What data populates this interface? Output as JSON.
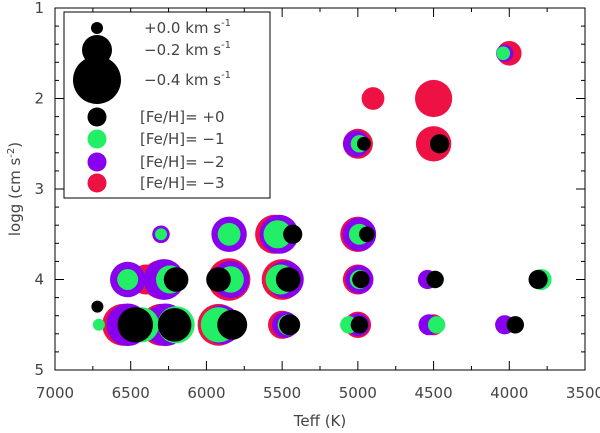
{
  "chart_data": {
    "type": "scatter",
    "xlabel": "Teff (K)",
    "ylabel_main": "logg (cm s",
    "ylabel_sup": "-2",
    "ylabel_end": ")",
    "xlim": [
      7000,
      3500
    ],
    "ylim": [
      1,
      5
    ],
    "x_ticks": [
      {
        "value": 7000,
        "label": "7000"
      },
      {
        "value": 6500,
        "label": "6500"
      },
      {
        "value": 6000,
        "label": "6000"
      },
      {
        "value": 5500,
        "label": "5500"
      },
      {
        "value": 5000,
        "label": "5000"
      },
      {
        "value": 4500,
        "label": "4500"
      },
      {
        "value": 4000,
        "label": "4000"
      },
      {
        "value": 3500,
        "label": "3500"
      }
    ],
    "y_ticks": [
      {
        "value": 1,
        "label": "1"
      },
      {
        "value": 2,
        "label": "2"
      },
      {
        "value": 3,
        "label": "3"
      },
      {
        "value": 4,
        "label": "4"
      },
      {
        "value": 5,
        "label": "5"
      }
    ],
    "size_legend": [
      {
        "label": "+0.0 km s",
        "sup": "-1",
        "value": 0.0
      },
      {
        "label": "−0.2 km s",
        "sup": "-1",
        "value": -0.2
      },
      {
        "label": "−0.4 km s",
        "sup": "-1",
        "value": -0.4
      }
    ],
    "color_legend": [
      {
        "label": "[Fe/H]= +0",
        "color": "#000000",
        "feh": 0
      },
      {
        "label": "[Fe/H]= −1",
        "color": "#22ee66",
        "feh": -1
      },
      {
        "label": "[Fe/H]= −2",
        "color": "#8800ee",
        "feh": -2
      },
      {
        "label": "[Fe/H]= −3",
        "color": "#ee1144",
        "feh": -3
      }
    ],
    "series": [
      {
        "name": "[Fe/H]= −3",
        "color": "#ee1144",
        "points": [
          {
            "teff": 6550,
            "logg": 4.5,
            "dv": -0.33
          },
          {
            "teff": 6300,
            "logg": 4.5,
            "dv": -0.33
          },
          {
            "teff": 5920,
            "logg": 4.5,
            "dv": -0.33
          },
          {
            "teff": 5500,
            "logg": 4.5,
            "dv": -0.18
          },
          {
            "teff": 5000,
            "logg": 4.5,
            "dv": -0.16
          },
          {
            "teff": 4500,
            "logg": 4.5,
            "dv": -0.1
          },
          {
            "teff": 6400,
            "logg": 4.0,
            "dv": -0.2
          },
          {
            "teff": 6300,
            "logg": 4.0,
            "dv": -0.3
          },
          {
            "teff": 5850,
            "logg": 4.0,
            "dv": -0.34
          },
          {
            "teff": 5500,
            "logg": 4.0,
            "dv": -0.32
          },
          {
            "teff": 5000,
            "logg": 4.0,
            "dv": -0.2
          },
          {
            "teff": 6300,
            "logg": 3.5,
            "dv": -0.06
          },
          {
            "teff": 5850,
            "logg": 3.5,
            "dv": -0.24
          },
          {
            "teff": 5550,
            "logg": 3.5,
            "dv": -0.3
          },
          {
            "teff": 5000,
            "logg": 3.5,
            "dv": -0.26
          },
          {
            "teff": 5000,
            "logg": 2.5,
            "dv": -0.2
          },
          {
            "teff": 4500,
            "logg": 2.5,
            "dv": -0.26
          },
          {
            "teff": 4900,
            "logg": 2.0,
            "dv": -0.12
          },
          {
            "teff": 4500,
            "logg": 2.0,
            "dv": -0.28
          },
          {
            "teff": 4000,
            "logg": 1.5,
            "dv": -0.14
          }
        ]
      },
      {
        "name": "[Fe/H]= −2",
        "color": "#8800ee",
        "points": [
          {
            "teff": 6520,
            "logg": 4.5,
            "dv": -0.34
          },
          {
            "teff": 6270,
            "logg": 4.5,
            "dv": -0.34
          },
          {
            "teff": 5900,
            "logg": 4.5,
            "dv": -0.3
          },
          {
            "teff": 5480,
            "logg": 4.5,
            "dv": -0.16
          },
          {
            "teff": 5000,
            "logg": 4.5,
            "dv": -0.12
          },
          {
            "teff": 4530,
            "logg": 4.5,
            "dv": -0.1
          },
          {
            "teff": 4030,
            "logg": 4.5,
            "dv": -0.08
          },
          {
            "teff": 6520,
            "logg": 4.0,
            "dv": -0.26
          },
          {
            "teff": 6280,
            "logg": 4.0,
            "dv": -0.32
          },
          {
            "teff": 5840,
            "logg": 4.0,
            "dv": -0.28
          },
          {
            "teff": 5480,
            "logg": 4.0,
            "dv": -0.28
          },
          {
            "teff": 4990,
            "logg": 4.0,
            "dv": -0.18
          },
          {
            "teff": 4540,
            "logg": 4.0,
            "dv": -0.08
          },
          {
            "teff": 6300,
            "logg": 3.5,
            "dv": -0.06
          },
          {
            "teff": 5850,
            "logg": 3.5,
            "dv": -0.26
          },
          {
            "teff": 5520,
            "logg": 3.5,
            "dv": -0.3
          },
          {
            "teff": 4990,
            "logg": 3.5,
            "dv": -0.24
          },
          {
            "teff": 5010,
            "logg": 2.5,
            "dv": -0.16
          },
          {
            "teff": 4030,
            "logg": 1.5,
            "dv": -0.06
          }
        ]
      },
      {
        "name": "[Fe/H]= −1",
        "color": "#22ee66",
        "points": [
          {
            "teff": 6710,
            "logg": 4.5,
            "dv": 0.0
          },
          {
            "teff": 6430,
            "logg": 4.5,
            "dv": -0.26
          },
          {
            "teff": 6200,
            "logg": 4.5,
            "dv": -0.28
          },
          {
            "teff": 5920,
            "logg": 4.5,
            "dv": -0.26
          },
          {
            "teff": 5460,
            "logg": 4.5,
            "dv": -0.1
          },
          {
            "teff": 5060,
            "logg": 4.5,
            "dv": -0.06
          },
          {
            "teff": 4480,
            "logg": 4.5,
            "dv": -0.06
          },
          {
            "teff": 6520,
            "logg": 4.0,
            "dv": -0.1
          },
          {
            "teff": 6240,
            "logg": 4.0,
            "dv": -0.18
          },
          {
            "teff": 5840,
            "logg": 4.0,
            "dv": -0.16
          },
          {
            "teff": 5510,
            "logg": 4.0,
            "dv": -0.2
          },
          {
            "teff": 4990,
            "logg": 4.0,
            "dv": -0.08
          },
          {
            "teff": 4490,
            "logg": 4.0,
            "dv": -0.06
          },
          {
            "teff": 3790,
            "logg": 4.0,
            "dv": -0.1
          },
          {
            "teff": 6300,
            "logg": 3.5,
            "dv": 0.0
          },
          {
            "teff": 5850,
            "logg": 3.5,
            "dv": -0.12
          },
          {
            "teff": 5530,
            "logg": 3.5,
            "dv": -0.18
          },
          {
            "teff": 4990,
            "logg": 3.5,
            "dv": -0.1
          },
          {
            "teff": 4990,
            "logg": 2.5,
            "dv": -0.06
          },
          {
            "teff": 4470,
            "logg": 2.5,
            "dv": -0.04
          },
          {
            "teff": 4040,
            "logg": 1.5,
            "dv": -0.02
          }
        ]
      },
      {
        "name": "[Fe/H]= +0",
        "color": "#000000",
        "points": [
          {
            "teff": 6720,
            "logg": 4.3,
            "dv": 0.0
          },
          {
            "teff": 6470,
            "logg": 4.5,
            "dv": -0.26
          },
          {
            "teff": 6210,
            "logg": 4.5,
            "dv": -0.24
          },
          {
            "teff": 5830,
            "logg": 4.5,
            "dv": -0.2
          },
          {
            "teff": 5450,
            "logg": 4.5,
            "dv": -0.1
          },
          {
            "teff": 4990,
            "logg": 4.5,
            "dv": -0.06
          },
          {
            "teff": 3960,
            "logg": 4.5,
            "dv": -0.06
          },
          {
            "teff": 6200,
            "logg": 4.0,
            "dv": -0.14
          },
          {
            "teff": 5920,
            "logg": 4.0,
            "dv": -0.14
          },
          {
            "teff": 5460,
            "logg": 4.0,
            "dv": -0.14
          },
          {
            "teff": 4980,
            "logg": 4.0,
            "dv": -0.06
          },
          {
            "teff": 4490,
            "logg": 4.0,
            "dv": -0.06
          },
          {
            "teff": 3810,
            "logg": 4.0,
            "dv": -0.08
          },
          {
            "teff": 5430,
            "logg": 3.5,
            "dv": -0.08
          },
          {
            "teff": 4940,
            "logg": 3.5,
            "dv": -0.04
          },
          {
            "teff": 4960,
            "logg": 2.5,
            "dv": -0.02
          },
          {
            "teff": 4460,
            "logg": 2.5,
            "dv": -0.08
          }
        ]
      }
    ]
  }
}
